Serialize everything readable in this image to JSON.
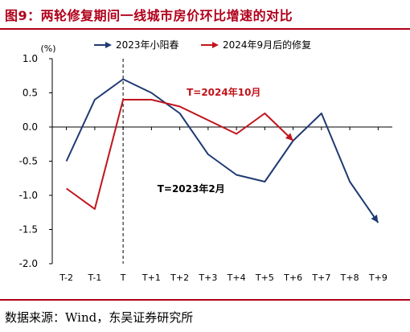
{
  "title": "图9：两轮修复期间一线城市房价环比增速的对比",
  "source": "数据来源：Wind，东吴证券研究所",
  "chart_data": {
    "type": "line",
    "unit_label": "(%)",
    "categories": [
      "T-2",
      "T-1",
      "T",
      "T+1",
      "T+2",
      "T+3",
      "T+4",
      "T+5",
      "T+6",
      "T+7",
      "T+8",
      "T+9"
    ],
    "ylim": [
      -2.0,
      1.0
    ],
    "yticks": [
      1.0,
      0.5,
      0.0,
      -0.5,
      -1.0,
      -1.5,
      -2.0
    ],
    "ytick_labels": [
      "1.0",
      "0.5",
      "0.0",
      "-0.5",
      "-1.0",
      "-1.5",
      "-2.0"
    ],
    "grid": false,
    "legend_position": "top",
    "series": [
      {
        "name": "2023年小阳春",
        "color": "#1f3a73",
        "values": [
          -0.5,
          0.4,
          0.7,
          0.5,
          0.2,
          -0.4,
          -0.7,
          -0.8,
          -0.2,
          0.2,
          -0.8,
          -1.4
        ]
      },
      {
        "name": "2024年9月后的修复",
        "color": "#c0141c",
        "values": [
          -0.9,
          -1.2,
          0.4,
          0.4,
          0.3,
          0.1,
          -0.1,
          0.2,
          -0.2,
          null,
          null,
          null
        ]
      }
    ],
    "annotations": [
      {
        "text": "T=2024年10月",
        "color": "#c0141c",
        "x_index": 5.55,
        "y": 0.46
      },
      {
        "text": "T=2023年2月",
        "color": "#000000",
        "x_index": 4.4,
        "y": -0.95
      }
    ],
    "vline_at": "T"
  }
}
